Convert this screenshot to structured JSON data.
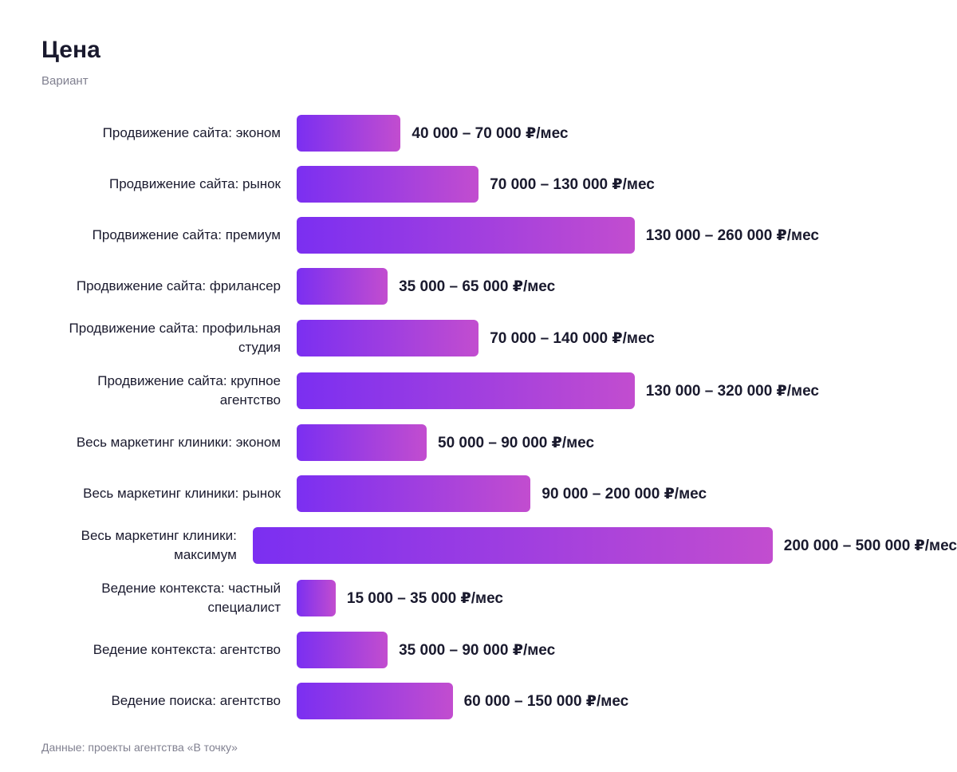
{
  "chart_data": {
    "type": "bar",
    "orientation": "horizontal",
    "title": "Цена",
    "subtitle": "Вариант",
    "categories": [
      "Продвижение сайта: эконом",
      "Продвижение сайта: рынок",
      "Продвижение сайта: премиум",
      "Продвижение сайта: фрилансер",
      "Продвижение сайта: профильная студия",
      "Продвижение сайта: крупное агентство",
      "Весь маркетинг клиники: эконом",
      "Весь маркетинг клиники: рынок",
      "Весь маркетинг клиники: максимум",
      "Ведение контекста: частный специалист",
      "Ведение контекста: агентство",
      "Ведение поиска: агентство"
    ],
    "values": [
      40000,
      70000,
      130000,
      35000,
      70000,
      130000,
      50000,
      90000,
      200000,
      15000,
      35000,
      60000
    ],
    "value_labels": [
      "40 000 – 70 000 ₽/мес",
      "70 000 – 130 000 ₽/мес",
      "130 000 – 260 000 ₽/мес",
      "35 000 – 65 000 ₽/мес",
      "70 000 – 140 000 ₽/мес",
      "130 000 – 320 000 ₽/мес",
      "50 000 – 90 000 ₽/мес",
      "90 000 – 200 000 ₽/мес",
      "200 000 – 500 000 ₽/мес",
      "15 000 – 35 000 ₽/мес",
      "35 000 – 90 000 ₽/мес",
      "60 000 – 150 000 ₽/мес"
    ],
    "colors": [
      "#7b2ff1",
      "#c24dcf"
    ],
    "source": "Данные: проекты агентства «В точку»"
  }
}
